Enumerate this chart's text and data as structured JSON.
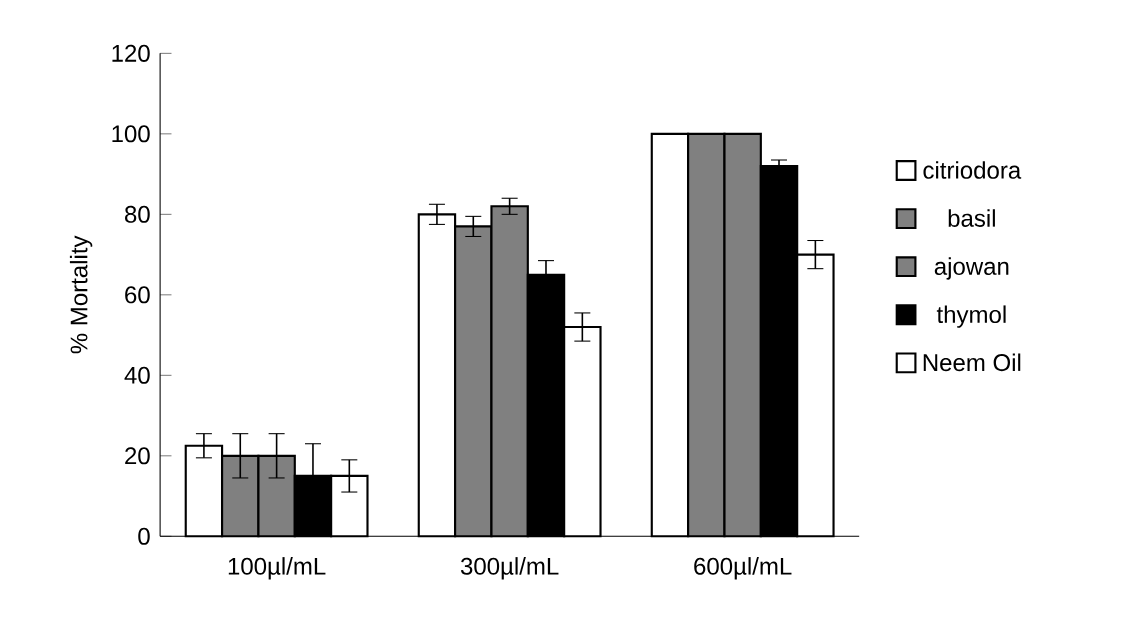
{
  "chart_data": {
    "type": "bar",
    "ylabel": "% Mortality",
    "categories": [
      "100µl/mL",
      "300µl/mL",
      "600µl/mL"
    ],
    "series": [
      {
        "name": "citriodora",
        "color": "#ffffff",
        "values": [
          22.5,
          80,
          100
        ],
        "errors": [
          3,
          2.5,
          0
        ]
      },
      {
        "name": "basil",
        "color": "#808080",
        "values": [
          20,
          77,
          100
        ],
        "errors": [
          5.5,
          2.5,
          0
        ]
      },
      {
        "name": "ajowan",
        "color": "#808080",
        "values": [
          20,
          82,
          100
        ],
        "errors": [
          5.5,
          2,
          0
        ]
      },
      {
        "name": "thymol",
        "color": "#000000",
        "values": [
          15,
          65,
          92
        ],
        "errors": [
          8,
          3.5,
          1.5
        ]
      },
      {
        "name": "Neem Oil",
        "color": "#ffffff",
        "values": [
          15,
          52,
          70
        ],
        "errors": [
          4,
          3.5,
          3.5
        ]
      }
    ],
    "ylim": [
      0,
      120
    ],
    "yticks": [
      0,
      20,
      40,
      60,
      80,
      100,
      120
    ],
    "legend": "right",
    "grid": false
  }
}
